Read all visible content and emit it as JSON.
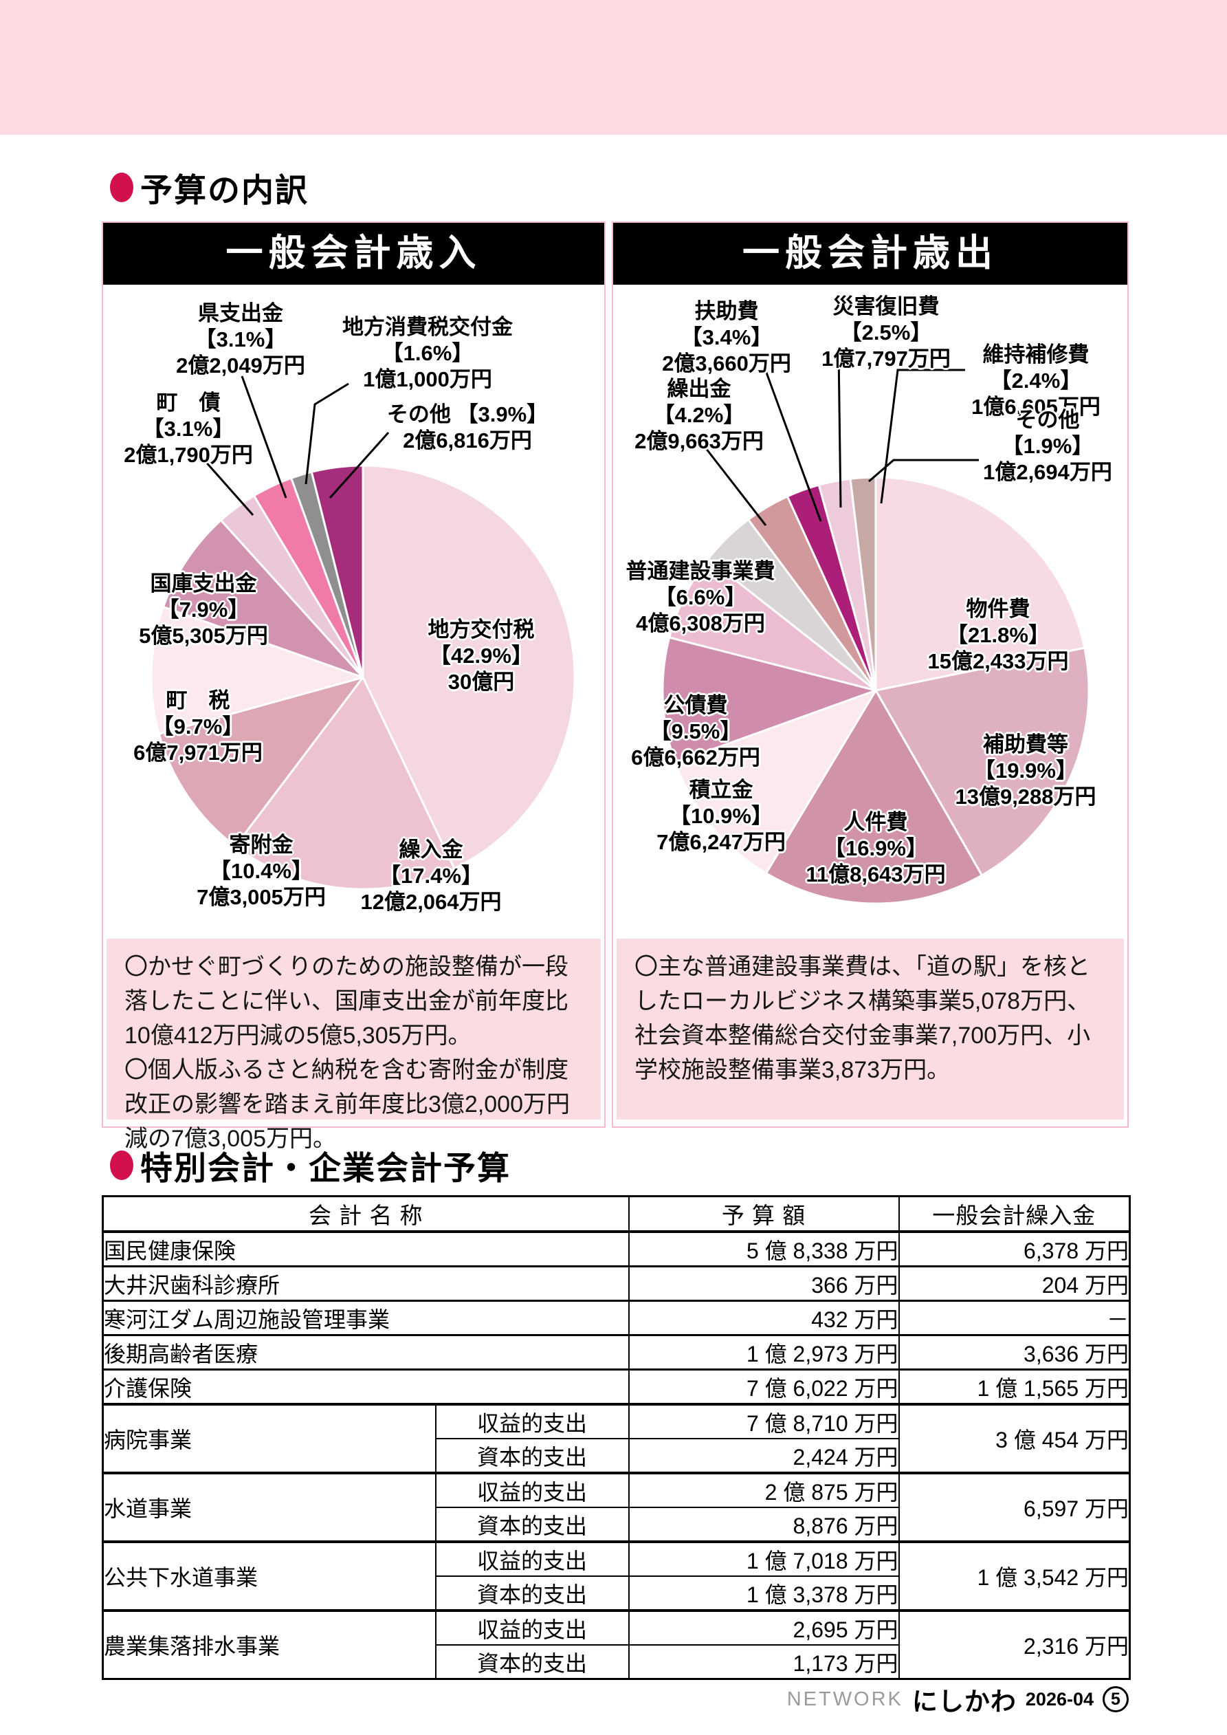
{
  "page": {
    "title": "予算の内訳",
    "section2_title": "特別会計・企業会計予算",
    "accent_red": "#d2104c",
    "band_color": "#fbdbe1",
    "note_bg": "#fbdce1"
  },
  "panels": [
    {
      "header": "一般会計歳入",
      "note": "〇かせぐ町づくりのための施設整備が一段落したことに伴い、国庫支出金が前年度比10億412万円減の5億5,305万円。\n〇個人版ふるさと納税を含む寄附金が制度改正の影響を踏まえ前年度比3億2,000万円減の7億3,005万円。"
    },
    {
      "header": "一般会計歳出",
      "note": "〇主な普通建設事業費は、「道の駅」を核としたローカルビジネス構築事業5,078万円、社会資本整備総合交付金事業7,700万円、小学校施設整備事業3,873万円。"
    }
  ],
  "chart_data": [
    {
      "type": "pie",
      "title": "一般会計歳入",
      "start_angle": "top",
      "direction": "clockwise",
      "slices": [
        {
          "label": "地方交付税",
          "pct": 42.9,
          "amount": "30億円",
          "color": "#f4d7df"
        },
        {
          "label": "繰入金",
          "pct": 17.4,
          "amount": "12億2,064万円",
          "color": "#ecc3ce"
        },
        {
          "label": "寄附金",
          "pct": 10.4,
          "amount": "7億3,005万円",
          "color": "#dda7b6"
        },
        {
          "label": "町　税",
          "pct": 9.7,
          "amount": "6億7,971万円",
          "color": "#fbe9ee"
        },
        {
          "label": "国庫支出金",
          "pct": 7.9,
          "amount": "5億5,305万円",
          "color": "#d193b0"
        },
        {
          "label": "町　債",
          "pct": 3.1,
          "amount": "2億1,790万円",
          "color": "#ebc7da"
        },
        {
          "label": "県支出金",
          "pct": 3.1,
          "amount": "2億2,049万円",
          "color": "#f07ba9"
        },
        {
          "label": "地方消費税交付金",
          "pct": 1.6,
          "amount": "1億1,000万円",
          "color": "#8f8f8f"
        },
        {
          "label": "その他",
          "pct": 3.9,
          "amount": "2億6,816万円",
          "color": "#a62c7c"
        }
      ]
    },
    {
      "type": "pie",
      "title": "一般会計歳出",
      "start_angle": "top",
      "direction": "clockwise",
      "slices": [
        {
          "label": "物件費",
          "pct": 21.8,
          "amount": "15億2,433万円",
          "color": "#f6dbe3"
        },
        {
          "label": "補助費等",
          "pct": 19.9,
          "amount": "13億9,288万円",
          "color": "#dfb0c1"
        },
        {
          "label": "人件費",
          "pct": 16.9,
          "amount": "11億8,643万円",
          "color": "#d193a8"
        },
        {
          "label": "積立金",
          "pct": 10.9,
          "amount": "7億6,247万円",
          "color": "#fbe9ed"
        },
        {
          "label": "公債費",
          "pct": 9.5,
          "amount": "6億6,662万円",
          "color": "#cf8cad"
        },
        {
          "label": "普通建設事業費",
          "pct": 6.6,
          "amount": "4億6,308万円",
          "color": "#ecbcd2"
        },
        {
          "label": "繰出金",
          "pct": 4.2,
          "amount": "2億9,663万円",
          "color": "#d9d5d6"
        },
        {
          "label": "扶助費",
          "pct": 3.4,
          "amount": "2億3,660万円",
          "color": "#d2999c"
        },
        {
          "label": "災害復旧費",
          "pct": 2.5,
          "amount": "1億7,797万円",
          "color": "#ab1f78"
        },
        {
          "label": "維持補修費",
          "pct": 2.4,
          "amount": "1億6,605万円",
          "color": "#eecbda"
        },
        {
          "label": "その他",
          "pct": 1.9,
          "amount": "1億2,694万円",
          "color": "#c6a8a5"
        }
      ]
    }
  ],
  "table": {
    "headers": [
      "会 計 名 称",
      "予 算 額",
      "一般会計繰入金"
    ],
    "rows": [
      {
        "name": "国民健康保険",
        "budget": "5 億 8,338 万円",
        "transfer": "6,378 万円"
      },
      {
        "name": "大井沢歯科診療所",
        "budget": "366 万円",
        "transfer": "204 万円"
      },
      {
        "name": "寒河江ダム周辺施設管理事業",
        "budget": "432 万円",
        "transfer": "－"
      },
      {
        "name": "後期高齢者医療",
        "budget": "1 億 2,973 万円",
        "transfer": "3,636 万円"
      },
      {
        "name": "介護保険",
        "budget": "7 億 6,022 万円",
        "transfer": "1 億 1,565 万円"
      },
      {
        "name": "病院事業",
        "sub": [
          {
            "label": "収益的支出",
            "budget": "7 億 8,710 万円"
          },
          {
            "label": "資本的支出",
            "budget": "2,424 万円"
          }
        ],
        "transfer": "3 億 454 万円"
      },
      {
        "name": "水道事業",
        "sub": [
          {
            "label": "収益的支出",
            "budget": "2 億 875 万円"
          },
          {
            "label": "資本的支出",
            "budget": "8,876 万円"
          }
        ],
        "transfer": "6,597 万円"
      },
      {
        "name": "公共下水道事業",
        "sub": [
          {
            "label": "収益的支出",
            "budget": "1 億 7,018 万円"
          },
          {
            "label": "資本的支出",
            "budget": "1 億 3,378 万円"
          }
        ],
        "transfer": "1 億 3,542 万円"
      },
      {
        "name": "農業集落排水事業",
        "sub": [
          {
            "label": "収益的支出",
            "budget": "2,695 万円"
          },
          {
            "label": "資本的支出",
            "budget": "1,173 万円"
          }
        ],
        "transfer": "2,316 万円"
      }
    ]
  },
  "footer": {
    "network": "NETWORK",
    "brand": "にしかわ",
    "issue": "2026-04",
    "page_num": "5"
  }
}
